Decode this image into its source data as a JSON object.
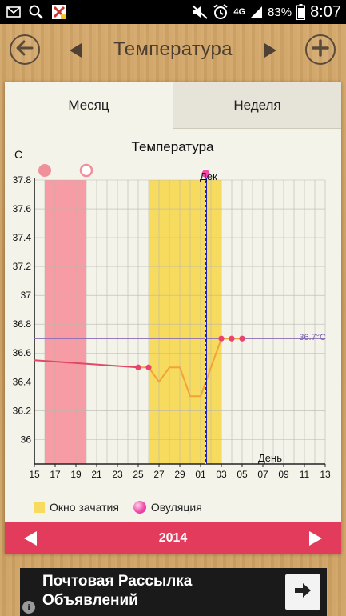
{
  "status_bar": {
    "battery_percent": "83%",
    "network": "4G",
    "time": "8:07",
    "icons": [
      "mail-icon",
      "search-icon",
      "notification-x-icon",
      "mute-icon",
      "alarm-icon",
      "signal-icon",
      "battery-icon"
    ]
  },
  "header": {
    "title": "Температура",
    "back_icon": "back-arrow-icon",
    "add_icon": "plus-icon"
  },
  "tabs": [
    {
      "label": "Месяц",
      "selected": true
    },
    {
      "label": "Неделя",
      "selected": false
    }
  ],
  "chart_data": {
    "type": "line",
    "title": "Температура",
    "ylabel": "C",
    "xlabel": "День",
    "ylim": [
      35.8,
      37.85
    ],
    "yticks": [
      "37.8",
      "37.6",
      "37.4",
      "37.2",
      "37",
      "36.8",
      "36.6",
      "36.4",
      "36.2",
      "36"
    ],
    "x_day_labels": [
      "15",
      "17",
      "19",
      "21",
      "23",
      "25",
      "27",
      "29",
      "01",
      "03",
      "05",
      "07",
      "09",
      "11",
      "13"
    ],
    "month_marker": "Дек",
    "reference_line": {
      "value": 36.7,
      "label": "36.7°C"
    },
    "colors": {
      "period": "#f79ca4",
      "fertile": "#f7db5e",
      "line_early": "#e04866",
      "line_late": "#f2a23a",
      "marker": "#e9436d",
      "today": "#1a22c8",
      "reference": "#8a6bb5"
    },
    "period_range": [
      16,
      20
    ],
    "fertile_range": [
      26,
      33
    ],
    "today_index": 31,
    "ovulation_index": 31,
    "cycle_markers": [
      {
        "index": 16,
        "type": "filled"
      },
      {
        "index": 20,
        "type": "hollow"
      }
    ],
    "series": [
      {
        "points": [
          {
            "i": 15,
            "v": 36.55
          },
          {
            "i": 25,
            "v": 36.5
          },
          {
            "i": 26,
            "v": 36.5
          },
          {
            "i": 27,
            "v": 36.4
          },
          {
            "i": 28,
            "v": 36.5
          },
          {
            "i": 29,
            "v": 36.5
          },
          {
            "i": 30,
            "v": 36.3
          },
          {
            "i": 31,
            "v": 36.3
          },
          {
            "i": 32,
            "v": 36.5
          },
          {
            "i": 33,
            "v": 36.7
          },
          {
            "i": 34,
            "v": 36.7
          },
          {
            "i": 35,
            "v": 36.7
          }
        ],
        "marked_indices": [
          25,
          26,
          33,
          34,
          35
        ]
      }
    ]
  },
  "legend": {
    "fertile_label": "Окно зачатия",
    "ovulation_label": "Овуляция"
  },
  "year_bar": {
    "year": "2014"
  },
  "ad": {
    "title": "Почтовая Рассылка Объявлений",
    "info": "i"
  }
}
